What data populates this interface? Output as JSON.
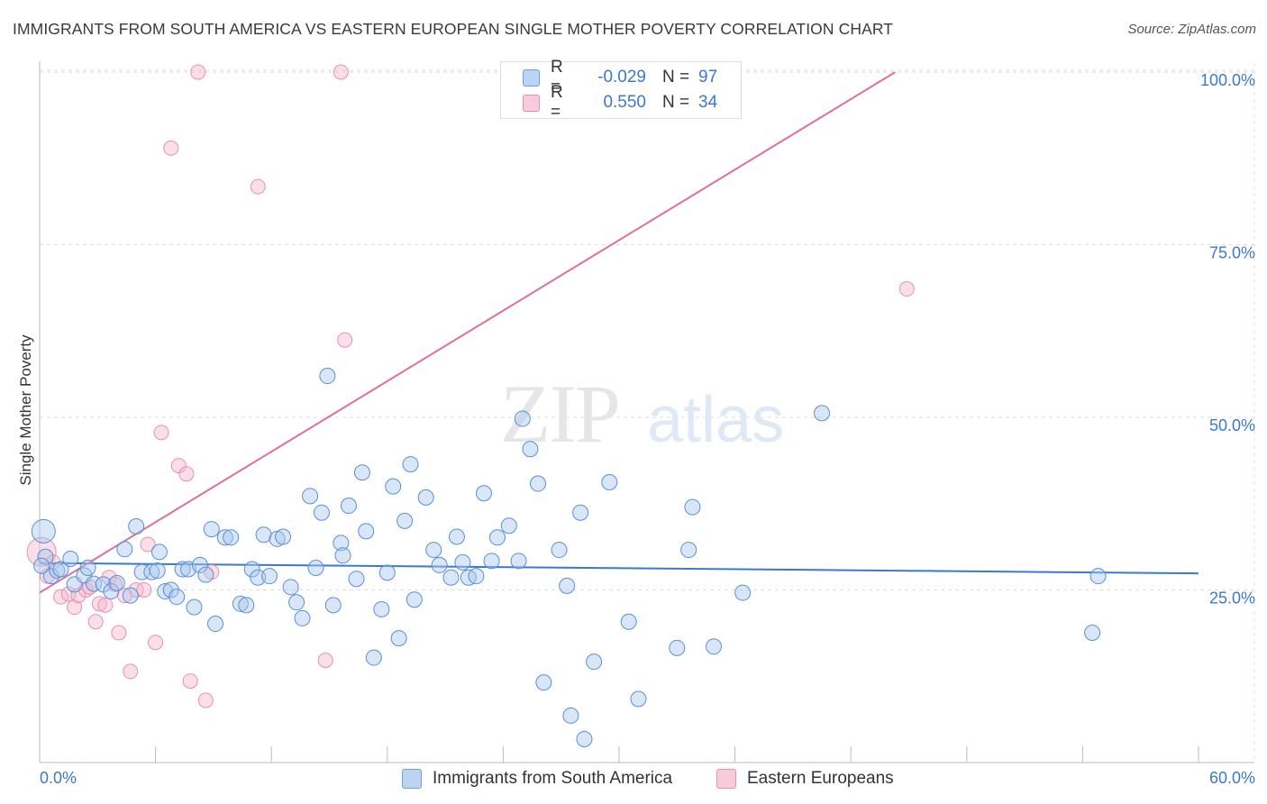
{
  "title": "IMMIGRANTS FROM SOUTH AMERICA VS EASTERN EUROPEAN SINGLE MOTHER POVERTY CORRELATION CHART",
  "source": "Source: ZipAtlas.com",
  "watermark": {
    "zip": "ZIP",
    "atlas": "atlas"
  },
  "legend": {
    "rows": [
      {
        "r_label": "R =",
        "r_value": "-0.029",
        "n_label": "N =",
        "n_value": "97"
      },
      {
        "r_label": "R =",
        "r_value": "0.550",
        "n_label": "N =",
        "n_value": "34"
      }
    ]
  },
  "bottom_legend": {
    "series1": "Immigrants from South America",
    "series2": "Eastern Europeans"
  },
  "chart_data": {
    "type": "scatter",
    "title": "IMMIGRANTS FROM SOUTH AMERICA VS EASTERN EUROPEAN SINGLE MOTHER POVERTY CORRELATION CHART",
    "xlabel": "",
    "ylabel": "Single Mother Poverty",
    "xlim": [
      0,
      60
    ],
    "ylim": [
      0,
      100
    ],
    "x_tick_labels": [
      "0.0%",
      "60.0%"
    ],
    "y_tick_labels": [
      "25.0%",
      "50.0%",
      "75.0%",
      "100.0%"
    ],
    "y_ticks": [
      25,
      50,
      75,
      100
    ],
    "grid": true,
    "legend_position": "top-center",
    "colors": {
      "blue": "#3b78d0",
      "blue_fill": "#a8c8f0",
      "pink": "#e0709a",
      "pink_fill": "#f5b8cc"
    },
    "series": [
      {
        "name": "Immigrants from South America",
        "color": "#3b78d0",
        "trend": {
          "x": [
            0,
            60
          ],
          "y": [
            28.9,
            27.4
          ]
        },
        "points": [
          [
            0.2,
            33.5
          ],
          [
            0.3,
            29.8
          ],
          [
            0.6,
            27.0
          ],
          [
            0.9,
            27.8
          ],
          [
            1.1,
            28.0
          ],
          [
            1.6,
            29.5
          ],
          [
            1.8,
            25.8
          ],
          [
            2.3,
            27.1
          ],
          [
            2.5,
            28.2
          ],
          [
            2.8,
            25.9
          ],
          [
            3.3,
            25.8
          ],
          [
            3.7,
            24.8
          ],
          [
            4.0,
            26.0
          ],
          [
            4.4,
            30.9
          ],
          [
            4.7,
            24.2
          ],
          [
            5.0,
            34.2
          ],
          [
            5.3,
            27.6
          ],
          [
            5.8,
            27.6
          ],
          [
            6.1,
            27.8
          ],
          [
            6.2,
            30.5
          ],
          [
            6.5,
            24.8
          ],
          [
            6.8,
            25.0
          ],
          [
            7.1,
            24.0
          ],
          [
            7.4,
            28.0
          ],
          [
            7.7,
            28.0
          ],
          [
            8.0,
            22.5
          ],
          [
            8.3,
            28.6
          ],
          [
            8.6,
            27.2
          ],
          [
            8.9,
            33.8
          ],
          [
            9.1,
            20.1
          ],
          [
            9.6,
            32.6
          ],
          [
            9.9,
            32.6
          ],
          [
            10.4,
            23.0
          ],
          [
            10.7,
            22.8
          ],
          [
            11.0,
            28.0
          ],
          [
            11.3,
            26.8
          ],
          [
            11.6,
            33.0
          ],
          [
            11.9,
            27.0
          ],
          [
            12.3,
            32.4
          ],
          [
            12.6,
            32.7
          ],
          [
            13.0,
            25.4
          ],
          [
            13.3,
            23.2
          ],
          [
            13.6,
            20.9
          ],
          [
            14.0,
            38.6
          ],
          [
            14.3,
            28.2
          ],
          [
            14.6,
            36.2
          ],
          [
            14.9,
            56.0
          ],
          [
            15.2,
            22.8
          ],
          [
            15.6,
            31.8
          ],
          [
            15.7,
            30.0
          ],
          [
            16.0,
            37.2
          ],
          [
            16.4,
            26.6
          ],
          [
            16.7,
            42.0
          ],
          [
            16.9,
            33.5
          ],
          [
            17.3,
            15.2
          ],
          [
            17.7,
            22.2
          ],
          [
            18.0,
            27.5
          ],
          [
            18.3,
            40.0
          ],
          [
            18.6,
            18.0
          ],
          [
            18.9,
            35.0
          ],
          [
            19.2,
            43.2
          ],
          [
            19.4,
            23.6
          ],
          [
            20.0,
            38.4
          ],
          [
            20.4,
            30.8
          ],
          [
            20.7,
            28.6
          ],
          [
            21.3,
            26.8
          ],
          [
            21.6,
            32.7
          ],
          [
            21.9,
            29.0
          ],
          [
            22.2,
            26.8
          ],
          [
            22.6,
            27.0
          ],
          [
            23.0,
            39.0
          ],
          [
            23.4,
            29.2
          ],
          [
            23.7,
            32.6
          ],
          [
            24.3,
            34.3
          ],
          [
            24.8,
            29.2
          ],
          [
            25.0,
            49.8
          ],
          [
            25.4,
            45.4
          ],
          [
            25.8,
            40.4
          ],
          [
            26.1,
            11.6
          ],
          [
            26.9,
            30.8
          ],
          [
            27.3,
            25.6
          ],
          [
            27.5,
            6.8
          ],
          [
            28.0,
            36.2
          ],
          [
            28.2,
            3.4
          ],
          [
            28.7,
            14.6
          ],
          [
            29.5,
            40.6
          ],
          [
            30.5,
            20.4
          ],
          [
            31.0,
            9.2
          ],
          [
            33.0,
            16.6
          ],
          [
            33.6,
            30.8
          ],
          [
            33.8,
            37.0
          ],
          [
            34.9,
            16.8
          ],
          [
            36.4,
            24.6
          ],
          [
            40.5,
            50.6
          ],
          [
            54.5,
            18.8
          ],
          [
            54.8,
            27.0
          ],
          [
            0.1,
            28.5
          ]
        ]
      },
      {
        "name": "Eastern Europeans",
        "color": "#e0709a",
        "trend": {
          "x": [
            0,
            44.3
          ],
          "y": [
            24.6,
            100
          ]
        },
        "points": [
          [
            0.1,
            30.5
          ],
          [
            0.4,
            27.0
          ],
          [
            0.7,
            29.0
          ],
          [
            1.1,
            24.0
          ],
          [
            1.5,
            24.4
          ],
          [
            1.8,
            22.5
          ],
          [
            2.0,
            24.2
          ],
          [
            2.4,
            25.0
          ],
          [
            2.9,
            20.4
          ],
          [
            3.1,
            23.0
          ],
          [
            3.4,
            22.8
          ],
          [
            3.6,
            26.8
          ],
          [
            4.1,
            18.8
          ],
          [
            4.7,
            13.2
          ],
          [
            5.0,
            25.0
          ],
          [
            5.4,
            25.0
          ],
          [
            5.6,
            31.6
          ],
          [
            6.0,
            17.4
          ],
          [
            6.3,
            47.8
          ],
          [
            6.8,
            89.0
          ],
          [
            7.2,
            43.0
          ],
          [
            7.6,
            41.8
          ],
          [
            7.8,
            11.8
          ],
          [
            8.2,
            100.0
          ],
          [
            8.6,
            9.0
          ],
          [
            8.9,
            27.6
          ],
          [
            11.3,
            83.4
          ],
          [
            14.8,
            14.8
          ],
          [
            15.6,
            100.0
          ],
          [
            15.8,
            61.2
          ],
          [
            44.9,
            68.6
          ],
          [
            2.6,
            25.4
          ],
          [
            3.9,
            25.8
          ],
          [
            4.4,
            24.2
          ]
        ]
      }
    ]
  }
}
